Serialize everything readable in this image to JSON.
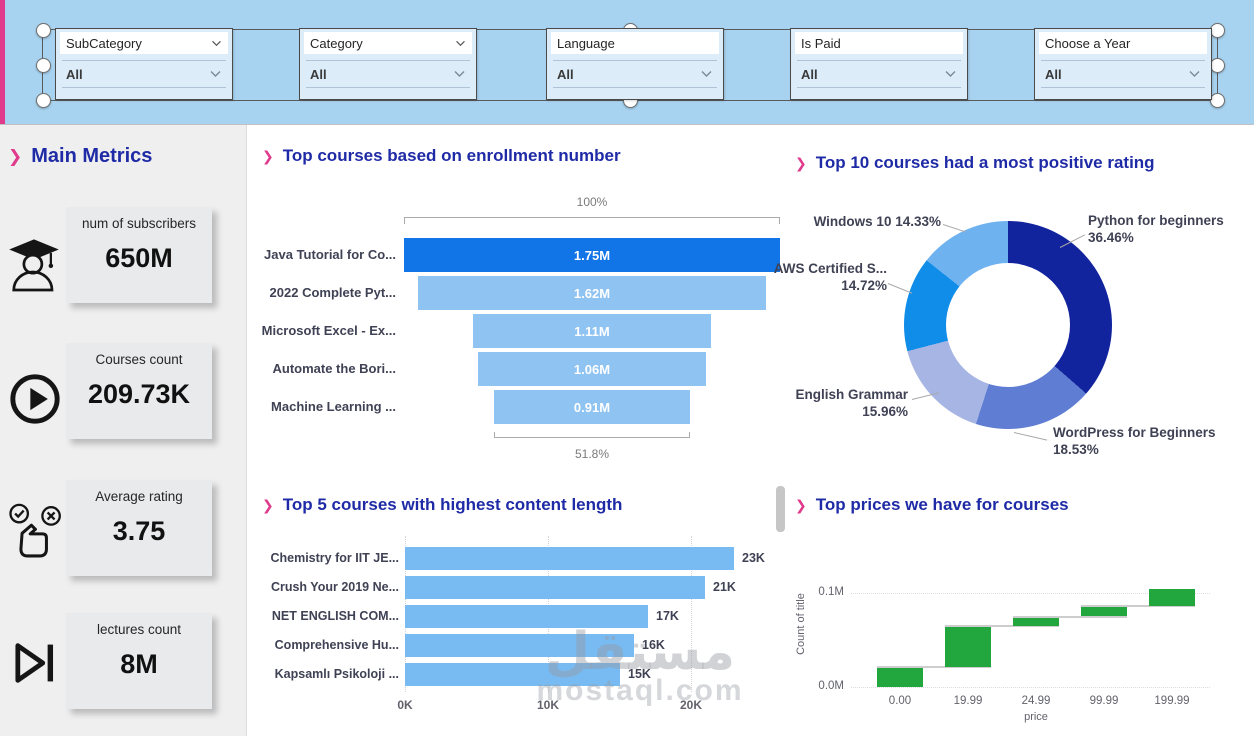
{
  "accent": {
    "pink": "#E03A8C",
    "navy": "#1F2BA6",
    "band_blue": "#A8D3F0"
  },
  "icons": {
    "title_chevron": "❯"
  },
  "slicers": [
    {
      "label": "SubCategory",
      "value": "All",
      "header_chevron": true
    },
    {
      "label": "Category",
      "value": "All",
      "header_chevron": true
    },
    {
      "label": "Language",
      "value": "All",
      "header_chevron": false
    },
    {
      "label": "Is Paid",
      "value": "All",
      "header_chevron": false
    },
    {
      "label": "Choose a Year",
      "value": "All",
      "header_chevron": false
    }
  ],
  "metrics": {
    "title": "Main Metrics",
    "cards": [
      {
        "icon": "graduate-icon",
        "label": "num of subscribers",
        "value": "650M"
      },
      {
        "icon": "play-circle-icon",
        "label": "Courses count",
        "value": "209.73K"
      },
      {
        "icon": "rating-hand-icon",
        "label": "Average rating",
        "value": "3.75"
      },
      {
        "icon": "skip-next-icon",
        "label": "lectures count",
        "value": "8M"
      }
    ]
  },
  "watermark": {
    "arabic": "مستقل",
    "latin": "mostaql.com"
  },
  "chart_data": [
    {
      "id": "enrollment_funnel",
      "type": "bar",
      "subtype": "funnel",
      "title": "Top courses based on enrollment number",
      "categories": [
        "Java Tutorial for Co...",
        "2022 Complete Pyt...",
        "Microsoft Excel - Ex...",
        "Automate the Bori...",
        "Machine Learning ..."
      ],
      "values": [
        1.75,
        1.62,
        1.11,
        1.06,
        0.91
      ],
      "value_labels": [
        "1.75M",
        "1.62M",
        "1.11M",
        "1.06M",
        "0.91M"
      ],
      "top_percent_label": "100%",
      "bottom_percent_label": "51.8%",
      "highlight_color": "#1175E8",
      "bar_color": "#8FC3F2"
    },
    {
      "id": "positive_rating_donut",
      "type": "pie",
      "title": "Top 10 courses had a most positive rating",
      "slices": [
        {
          "name": "Python for beginners",
          "pct": 36.46,
          "color": "#12239E",
          "label_lines": [
            "Python for beginners",
            "36.46%"
          ]
        },
        {
          "name": "WordPress for Beginners",
          "pct": 18.53,
          "color": "#5F7DD2",
          "label_lines": [
            "WordPress for Beginners",
            "18.53%"
          ]
        },
        {
          "name": "English Grammar",
          "pct": 15.96,
          "color": "#A6B5E3",
          "label_lines": [
            "English Grammar",
            "15.96%"
          ]
        },
        {
          "name": "AWS Certified S...",
          "pct": 14.72,
          "color": "#108DE9",
          "label_lines": [
            "AWS Certified S...",
            "14.72%"
          ]
        },
        {
          "name": "Windows 10",
          "pct": 14.33,
          "color": "#6FB2F0",
          "label_lines": [
            "Windows 10 14.33%"
          ]
        }
      ]
    },
    {
      "id": "content_length_bars",
      "type": "bar",
      "title": "Top 5 courses with highest content length",
      "categories": [
        "Chemistry for IIT JE...",
        "Crush Your 2019 Ne...",
        "NET ENGLISH COM...",
        "Comprehensive Hu...",
        "Kapsamlı Psikoloji ..."
      ],
      "values": [
        23,
        21,
        17,
        16,
        15
      ],
      "value_labels": [
        "23K",
        "21K",
        "17K",
        "16K",
        "15K"
      ],
      "x_ticks": [
        "0K",
        "10K",
        "20K"
      ],
      "x_tick_values": [
        0,
        10,
        20
      ],
      "xlim": [
        0,
        25.2
      ],
      "bar_color": "#77BBF2"
    },
    {
      "id": "prices_waterfall",
      "type": "bar",
      "subtype": "waterfall",
      "title": "Top prices we have for courses",
      "categories": [
        "0.00",
        "19.99",
        "24.99",
        "99.99",
        "199.99"
      ],
      "increments_m": [
        0.021,
        0.044,
        0.01,
        0.011,
        0.018
      ],
      "cumulative_m": [
        0.021,
        0.065,
        0.075,
        0.086,
        0.104
      ],
      "y_ticks": [
        "0.1M",
        "0.0M"
      ],
      "y_tick_values_m": [
        0.1,
        0.0
      ],
      "ylim_m": [
        0,
        0.107
      ],
      "ylabel": "Count of title",
      "xlabel": "price",
      "bar_color": "#22A63E"
    }
  ]
}
